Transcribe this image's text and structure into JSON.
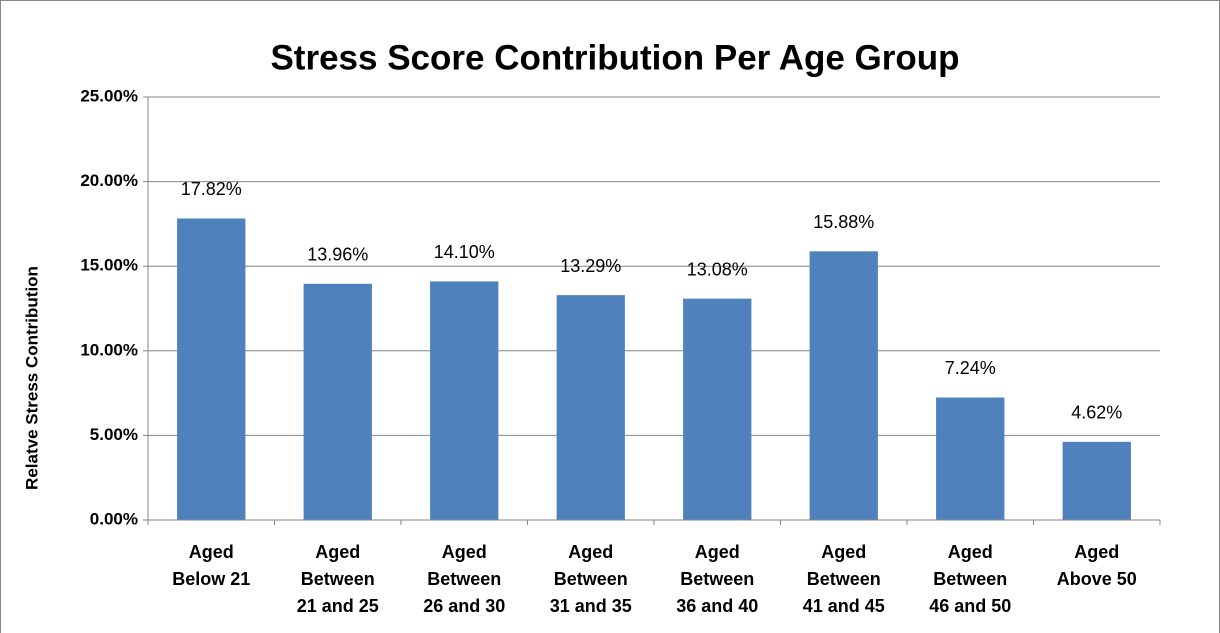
{
  "chart_data": {
    "type": "bar",
    "title": "Stress Score Contribution Per Age Group",
    "y_label": "Relatve Stress Contribution",
    "categories": [
      [
        "Aged",
        "Below 21"
      ],
      [
        "Aged",
        "Between",
        "21 and 25"
      ],
      [
        "Aged",
        "Between",
        "26 and 30"
      ],
      [
        "Aged",
        "Between",
        "31 and 35"
      ],
      [
        "Aged",
        "Between",
        "36 and 40"
      ],
      [
        "Aged",
        "Between",
        "41 and 45"
      ],
      [
        "Aged",
        "Between",
        "46 and 50"
      ],
      [
        "Aged",
        "Above 50"
      ]
    ],
    "values": [
      17.82,
      13.96,
      14.1,
      13.29,
      13.08,
      15.88,
      7.24,
      4.62
    ],
    "value_labels": [
      "17.82%",
      "13.96%",
      "14.10%",
      "13.29%",
      "13.08%",
      "15.88%",
      "7.24%",
      "4.62%"
    ],
    "color": "#4f81bd",
    "ylim": [
      0,
      25
    ],
    "yticks": [
      {
        "value": 0,
        "label": "0.00%"
      },
      {
        "value": 5,
        "label": "5.00%"
      },
      {
        "value": 10,
        "label": "10.00%"
      },
      {
        "value": 15,
        "label": "15.00%"
      },
      {
        "value": 20,
        "label": "20.00%"
      },
      {
        "value": 25,
        "label": "25.00%"
      }
    ],
    "grid": true
  }
}
